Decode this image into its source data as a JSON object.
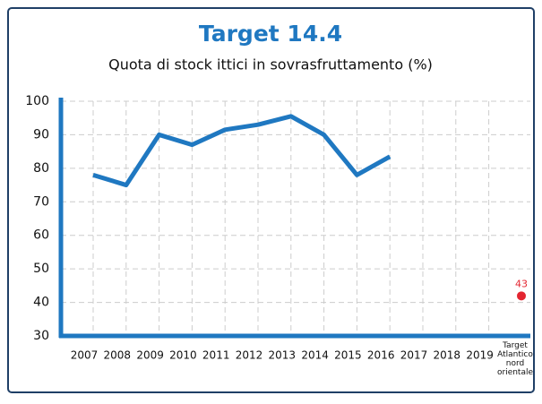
{
  "chart_data": {
    "type": "line",
    "title": "Target 14.4",
    "subtitle": "Quota di stock ittici in sovrasfruttamento (%)",
    "categories": [
      "2007",
      "2008",
      "2009",
      "2010",
      "2011",
      "2012",
      "2013",
      "2014",
      "2015",
      "2016",
      "2017",
      "2018",
      "2019",
      "Target Atlantico nord orientale"
    ],
    "series": [
      {
        "color": "#1f78c1",
        "values": [
          78,
          75,
          90,
          87,
          91.5,
          93,
          95.5,
          90,
          78,
          83.5,
          null,
          null,
          null,
          null
        ]
      },
      {
        "color": "#e32530",
        "values": [
          null,
          null,
          null,
          null,
          null,
          null,
          null,
          null,
          null,
          null,
          null,
          null,
          null,
          43
        ]
      }
    ],
    "ylim": [
      30,
      100
    ],
    "yticks": [
      30,
      40,
      50,
      60,
      70,
      80,
      90,
      100
    ],
    "grid": true
  }
}
